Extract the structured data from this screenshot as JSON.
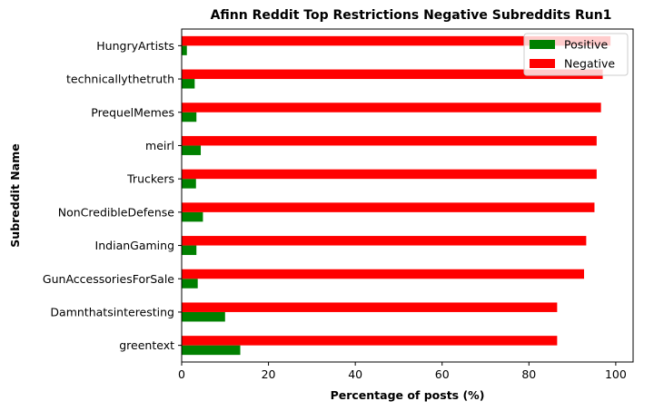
{
  "chart_data": {
    "type": "bar",
    "orientation": "horizontal",
    "title": "Afinn Reddit Top Restrictions Negative Subreddits Run1",
    "xlabel": "Percentage of posts (%)",
    "ylabel": "Subreddit Name",
    "xlim": [
      0,
      104
    ],
    "xticks": [
      0,
      20,
      40,
      60,
      80,
      100
    ],
    "grid": false,
    "legend_position": "top-right",
    "categories": [
      "greentext",
      "Damnthatsinteresting",
      "GunAccessoriesForSale",
      "IndianGaming",
      "NonCredibleDefense",
      "Truckers",
      "meirl",
      "PrequelMemes",
      "technicallythetruth",
      "HungryArtists"
    ],
    "series": [
      {
        "name": "Positive",
        "color": "#008000",
        "values": [
          13.5,
          10,
          3.7,
          3.4,
          4.9,
          3.3,
          4.4,
          3.4,
          3,
          1.2
        ]
      },
      {
        "name": "Negative",
        "color": "#ff0000",
        "values": [
          86.5,
          86.5,
          92.7,
          93.2,
          95.1,
          95.6,
          95.6,
          96.6,
          97,
          98.8
        ]
      }
    ]
  }
}
